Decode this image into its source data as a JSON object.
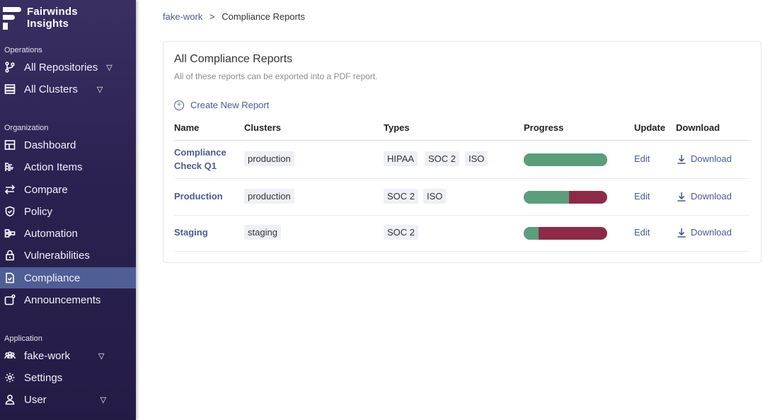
{
  "brand": {
    "line1": "Fairwinds",
    "line2": "Insights"
  },
  "sidebar": {
    "sections": {
      "operations": "Operations",
      "organization": "Organization",
      "application": "Application"
    },
    "operations": [
      {
        "label": "All Repositories",
        "icon": "branch-icon"
      },
      {
        "label": "All Clusters",
        "icon": "server-icon"
      }
    ],
    "organization": [
      {
        "label": "Dashboard",
        "icon": "dashboard-icon"
      },
      {
        "label": "Action Items",
        "icon": "list-icon"
      },
      {
        "label": "Compare",
        "icon": "arrows-icon"
      },
      {
        "label": "Policy",
        "icon": "shield-icon"
      },
      {
        "label": "Automation",
        "icon": "automation-icon"
      },
      {
        "label": "Vulnerabilities",
        "icon": "lock-icon"
      },
      {
        "label": "Compliance",
        "icon": "document-icon"
      },
      {
        "label": "Announcements",
        "icon": "announcement-icon"
      }
    ],
    "application": [
      {
        "label": "fake-work",
        "icon": "team-icon"
      },
      {
        "label": "Settings",
        "icon": "gear-icon"
      },
      {
        "label": "User",
        "icon": "user-icon"
      }
    ],
    "active": "Compliance"
  },
  "breadcrumb": {
    "parent": "fake-work",
    "separator": ">",
    "current": "Compliance Reports"
  },
  "card": {
    "title": "All Compliance Reports",
    "subtitle": "All of these reports can be exported into a PDF report.",
    "create_label": "Create New Report"
  },
  "table": {
    "headers": {
      "name": "Name",
      "clusters": "Clusters",
      "types": "Types",
      "progress": "Progress",
      "update": "Update",
      "download": "Download"
    },
    "rows": [
      {
        "name": "Compliance Check Q1",
        "clusters": [
          "production"
        ],
        "types": [
          "HIPAA",
          "SOC 2",
          "ISO"
        ],
        "progress": 1.0,
        "edit": "Edit",
        "download": "Download"
      },
      {
        "name": "Production",
        "clusters": [
          "production"
        ],
        "types": [
          "SOC 2",
          "ISO"
        ],
        "progress": 0.54,
        "edit": "Edit",
        "download": "Download"
      },
      {
        "name": "Staging",
        "clusters": [
          "staging"
        ],
        "types": [
          "SOC 2"
        ],
        "progress": 0.18,
        "edit": "Edit",
        "download": "Download"
      }
    ]
  },
  "colors": {
    "sidebar": "#2b2150",
    "active": "#4f5e95",
    "link": "#4a5a92",
    "progress_pass": "#5a9e7a",
    "progress_fail": "#8e2a47"
  }
}
